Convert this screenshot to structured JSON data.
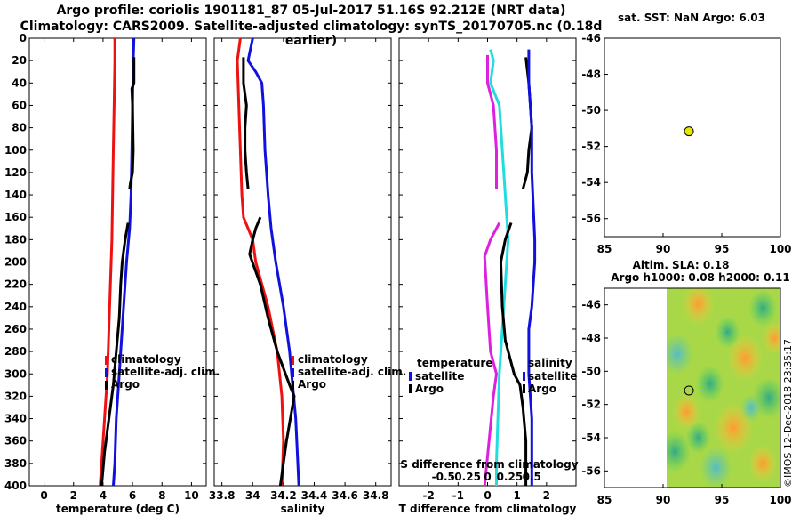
{
  "title_line1": "Argo profile: coriolis 1901181_87 05-Jul-2017 51.16S 92.212E (NRT data)",
  "title_line2": "Climatology: CARS2009. Satellite-adjusted climatology: synTS_20170705.nc (0.18d earlier)",
  "colors": {
    "climatology": "#ee1111",
    "satellite": "#1111dd",
    "argo": "#000000",
    "sdiff_sat": "#dd22dd",
    "tdiff_sat": "#22dddd",
    "marker": "#e6e600"
  },
  "chart_data": [
    {
      "id": "temperature",
      "type": "line",
      "xlabel": "temperature (deg C)",
      "xlim": [
        -1,
        11
      ],
      "ylim": [
        0,
        400
      ],
      "y_inverted": true,
      "xticks": [
        0,
        2,
        4,
        6,
        8,
        10
      ],
      "yticks": [
        0,
        20,
        40,
        60,
        80,
        100,
        120,
        140,
        160,
        180,
        200,
        220,
        240,
        260,
        280,
        300,
        320,
        340,
        360,
        380,
        400
      ],
      "legend": [
        "climatology",
        "satellite-adj. clim.",
        "Argo"
      ],
      "series": [
        {
          "name": "climatology",
          "color": "#ee1111",
          "points": [
            [
              4.8,
              0
            ],
            [
              4.8,
              20
            ],
            [
              4.75,
              60
            ],
            [
              4.7,
              100
            ],
            [
              4.65,
              140
            ],
            [
              4.6,
              180
            ],
            [
              4.5,
              220
            ],
            [
              4.4,
              260
            ],
            [
              4.3,
              300
            ],
            [
              4.1,
              340
            ],
            [
              3.9,
              380
            ],
            [
              3.8,
              400
            ]
          ]
        },
        {
          "name": "satellite-adj. clim.",
          "color": "#1111dd",
          "points": [
            [
              6.1,
              0
            ],
            [
              6.05,
              20
            ],
            [
              6.0,
              60
            ],
            [
              5.95,
              100
            ],
            [
              5.9,
              140
            ],
            [
              5.8,
              170
            ],
            [
              5.6,
              200
            ],
            [
              5.4,
              240
            ],
            [
              5.2,
              280
            ],
            [
              5.1,
              300
            ],
            [
              4.9,
              340
            ],
            [
              4.8,
              380
            ],
            [
              4.7,
              400
            ]
          ]
        },
        {
          "name": "Argo",
          "color": "#000000",
          "points": [
            [
              6.1,
              17
            ],
            [
              6.1,
              40
            ],
            [
              5.95,
              45
            ],
            [
              6.0,
              60
            ],
            [
              6.05,
              100
            ],
            [
              6.0,
              120
            ],
            [
              5.85,
              130
            ],
            [
              5.8,
              135
            ],
            [
              null,
              null
            ],
            [
              5.7,
              165
            ],
            [
              5.5,
              180
            ],
            [
              5.3,
              200
            ],
            [
              5.2,
              220
            ],
            [
              5.1,
              250
            ],
            [
              4.9,
              280
            ],
            [
              4.7,
              310
            ],
            [
              4.5,
              330
            ],
            [
              4.3,
              350
            ],
            [
              4.1,
              370
            ],
            [
              3.9,
              400
            ]
          ]
        }
      ]
    },
    {
      "id": "salinity",
      "type": "line",
      "xlabel": "salinity",
      "xlim": [
        33.75,
        34.9
      ],
      "ylim": [
        0,
        400
      ],
      "y_inverted": true,
      "xticks": [
        33.8,
        34,
        34.2,
        34.4,
        34.6,
        34.8
      ],
      "xticklabels": [
        "33.8",
        "34",
        "34.2",
        "34.4",
        "34.6",
        "34.8"
      ],
      "legend": [
        "climatology",
        "satellite-adj. clim.",
        "Argo"
      ],
      "series": [
        {
          "name": "climatology",
          "color": "#ee1111",
          "points": [
            [
              33.92,
              0
            ],
            [
              33.9,
              20
            ],
            [
              33.91,
              60
            ],
            [
              33.92,
              100
            ],
            [
              33.93,
              140
            ],
            [
              33.94,
              160
            ],
            [
              34.0,
              180
            ],
            [
              34.02,
              200
            ],
            [
              34.1,
              240
            ],
            [
              34.16,
              280
            ],
            [
              34.19,
              320
            ],
            [
              34.2,
              360
            ],
            [
              34.19,
              400
            ]
          ]
        },
        {
          "name": "satellite-adj. clim.",
          "color": "#1111dd",
          "points": [
            [
              34.0,
              0
            ],
            [
              33.97,
              20
            ],
            [
              34.02,
              30
            ],
            [
              34.06,
              40
            ],
            [
              34.07,
              60
            ],
            [
              34.08,
              100
            ],
            [
              34.1,
              140
            ],
            [
              34.12,
              170
            ],
            [
              34.15,
              200
            ],
            [
              34.2,
              240
            ],
            [
              34.24,
              280
            ],
            [
              34.28,
              340
            ],
            [
              34.3,
              400
            ]
          ]
        },
        {
          "name": "Argo",
          "color": "#000000",
          "points": [
            [
              33.94,
              17
            ],
            [
              33.94,
              40
            ],
            [
              33.96,
              60
            ],
            [
              33.95,
              80
            ],
            [
              33.95,
              100
            ],
            [
              33.96,
              120
            ],
            [
              33.97,
              135
            ],
            [
              null,
              null
            ],
            [
              34.05,
              160
            ],
            [
              34.02,
              170
            ],
            [
              34.0,
              180
            ],
            [
              33.98,
              193
            ],
            [
              34.05,
              220
            ],
            [
              34.1,
              250
            ],
            [
              34.16,
              280
            ],
            [
              34.24,
              310
            ],
            [
              34.27,
              320
            ],
            [
              34.22,
              360
            ],
            [
              34.18,
              400
            ]
          ]
        }
      ]
    },
    {
      "id": "differences",
      "type": "line",
      "xlabel": "T difference from climatology",
      "xlabel_top": "S difference from climatology",
      "xlim": [
        -3,
        3
      ],
      "ylim": [
        0,
        400
      ],
      "y_inverted": true,
      "xticks": [
        -2,
        -1,
        0,
        1,
        2
      ],
      "top_xticks": [
        -0.5,
        -0.25,
        0,
        0.25,
        0.5
      ],
      "top_xticklabels": [
        "-0.5",
        "-0.25",
        "0",
        "0.25",
        "0.5"
      ],
      "top_scale": 3,
      "legend_left_title": "temperature",
      "legend_right_title": "salinity",
      "legend_left": [
        "satellite",
        "Argo"
      ],
      "legend_right": [
        "satellite",
        "Argo"
      ],
      "series": [
        {
          "name": "T satellite",
          "color": "#22dddd",
          "points": [
            [
              0.1,
              10
            ],
            [
              0.2,
              20
            ],
            [
              0.1,
              40
            ],
            [
              0.4,
              60
            ],
            [
              0.5,
              100
            ],
            [
              0.6,
              140
            ],
            [
              0.7,
              180
            ],
            [
              0.6,
              220
            ],
            [
              0.5,
              260
            ],
            [
              0.4,
              300
            ],
            [
              0.35,
              340
            ],
            [
              0.3,
              380
            ],
            [
              0.3,
              400
            ]
          ]
        },
        {
          "name": "S satellite",
          "color": "#dd22dd",
          "points": [
            [
              0.0,
              15
            ],
            [
              0.0,
              40
            ],
            [
              0.2,
              60
            ],
            [
              0.3,
              100
            ],
            [
              0.3,
              135
            ],
            [
              null,
              null
            ],
            [
              0.4,
              165
            ],
            [
              0.1,
              180
            ],
            [
              -0.1,
              195
            ],
            [
              0.0,
              240
            ],
            [
              0.1,
              280
            ],
            [
              0.3,
              300
            ],
            [
              0.2,
              320
            ],
            [
              0.05,
              360
            ],
            [
              -0.1,
              400
            ]
          ]
        },
        {
          "name": "T Argo",
          "color": "#000000",
          "points": [
            [
              1.3,
              17
            ],
            [
              1.4,
              40
            ],
            [
              1.5,
              80
            ],
            [
              1.4,
              100
            ],
            [
              1.35,
              120
            ],
            [
              1.2,
              135
            ],
            [
              null,
              null
            ],
            [
              0.8,
              165
            ],
            [
              0.6,
              180
            ],
            [
              0.45,
              200
            ],
            [
              0.5,
              240
            ],
            [
              0.6,
              270
            ],
            [
              0.9,
              300
            ],
            [
              1.1,
              310
            ],
            [
              1.2,
              330
            ],
            [
              1.3,
              360
            ],
            [
              1.3,
              400
            ]
          ]
        },
        {
          "name": "S Argo",
          "color": "#1111dd",
          "points": [
            [
              1.4,
              10
            ],
            [
              1.4,
              40
            ],
            [
              1.5,
              80
            ],
            [
              1.5,
              120
            ],
            [
              1.6,
              180
            ],
            [
              1.6,
              200
            ],
            [
              1.5,
              240
            ],
            [
              1.4,
              260
            ],
            [
              1.4,
              300
            ],
            [
              1.5,
              340
            ],
            [
              1.5,
              400
            ]
          ]
        }
      ]
    },
    {
      "id": "sst_map",
      "type": "scatter",
      "title": "sat. SST: NaN Argo: 6.03",
      "xlim": [
        85,
        100
      ],
      "ylim": [
        -57,
        -46
      ],
      "xticks": [
        85,
        90,
        95,
        100
      ],
      "yticks": [
        -46,
        -48,
        -50,
        -52,
        -54,
        -56
      ],
      "points": [
        [
          92.2,
          -51.16
        ]
      ]
    },
    {
      "id": "sla_map",
      "type": "heatmap",
      "title_line1": "Altim. SLA: 0.18",
      "title_line2": "Argo h1000: 0.08 h2000: 0.11",
      "xlim": [
        85,
        100
      ],
      "ylim": [
        -57,
        -45
      ],
      "xticks": [
        85,
        90,
        95,
        100
      ],
      "yticks": [
        -46,
        -48,
        -50,
        -52,
        -54,
        -56
      ],
      "data_extent_lon": [
        90,
        100
      ],
      "points": [
        [
          92.2,
          -51.16
        ]
      ]
    }
  ],
  "side_label": "©IMOS 12-Dec-2018 23:35:17"
}
